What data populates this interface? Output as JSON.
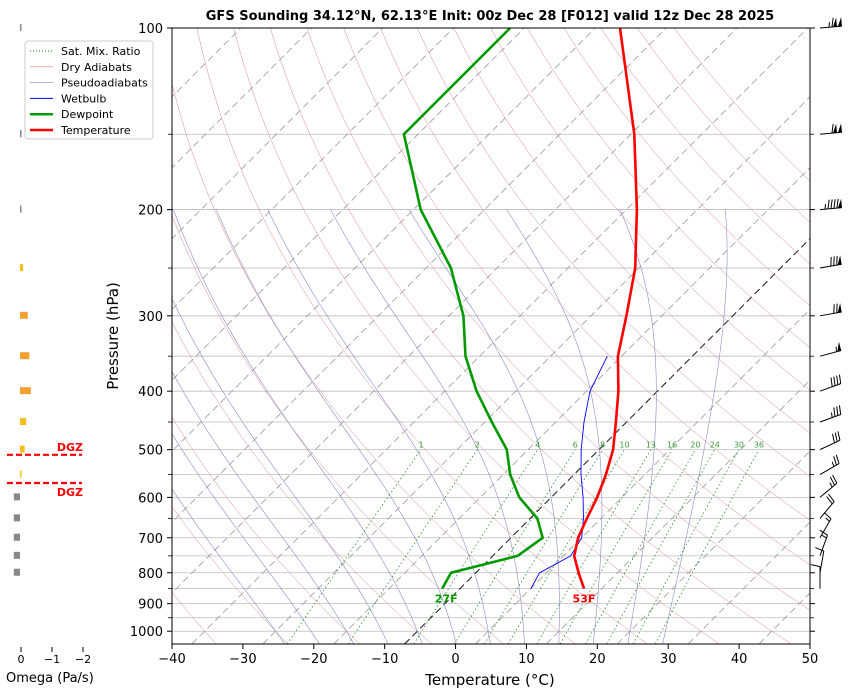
{
  "chart_data": {
    "type": "line",
    "title": "GFS Sounding 34.12°N, 62.13°E Init: 00z Dec 28 [F012] valid 12z Dec 28 2025",
    "xlabel": "Temperature (°C)",
    "ylabel": "Pressure (hPa)",
    "xlim": [
      -40,
      50
    ],
    "ylim": [
      1050,
      100
    ],
    "x_ticks": [
      -40,
      -30,
      -20,
      -10,
      0,
      10,
      20,
      30,
      40,
      50
    ],
    "x_tick_labels": [
      "−40",
      "−30",
      "−20",
      "−10",
      "0",
      "10",
      "20",
      "30",
      "40",
      "50"
    ],
    "y_tick_labels": [
      100,
      200,
      300,
      400,
      500,
      600,
      700,
      800,
      900,
      1000
    ],
    "minor_pressure_levels": [
      150,
      250,
      350,
      450,
      550,
      650,
      750,
      850,
      950
    ],
    "legend": {
      "placement": "top-left",
      "entries": [
        {
          "label": "Sat. Mix. Ratio",
          "color": "#008000",
          "style": "dotted"
        },
        {
          "label": "Dry Adiabats",
          "color": "#d08080",
          "style": "solid"
        },
        {
          "label": "Pseudoadiabats",
          "color": "#8080c0",
          "style": "solid"
        },
        {
          "label": "Wetbulb",
          "color": "#0000ff",
          "style": "solid"
        },
        {
          "label": "Dewpoint",
          "color": "#009900",
          "style": "thick"
        },
        {
          "label": "Temperature",
          "color": "#ff0000",
          "style": "thick"
        }
      ]
    },
    "series": [
      {
        "name": "Temperature",
        "color": "#ff0000",
        "pressure": [
          850,
          800,
          750,
          700,
          650,
          600,
          550,
          500,
          450,
          400,
          350,
          300,
          250,
          200,
          150,
          100
        ],
        "values": [
          17.5,
          14.5,
          11.5,
          9.5,
          8.0,
          6.5,
          4.5,
          2.0,
          -1.5,
          -5.5,
          -10.5,
          -15.0,
          -20.5,
          -28.5,
          -39.5,
          -56.5
        ]
      },
      {
        "name": "Dewpoint",
        "color": "#009900",
        "pressure": [
          850,
          800,
          750,
          700,
          650,
          600,
          550,
          500,
          450,
          400,
          350,
          300,
          250,
          200,
          150,
          100
        ],
        "values": [
          -2.5,
          -3.5,
          3.5,
          4.5,
          1.0,
          -4.5,
          -9.0,
          -13.0,
          -19.0,
          -25.5,
          -32.0,
          -38.0,
          -46.5,
          -59.0,
          -72.0,
          -72.0
        ]
      },
      {
        "name": "Wetbulb",
        "color": "#0000ff",
        "pressure": [
          850,
          800,
          750,
          700,
          650,
          600,
          550,
          500,
          450,
          400,
          350
        ],
        "values": [
          10.0,
          9.0,
          11.0,
          10.0,
          7.5,
          4.5,
          1.0,
          -2.5,
          -6.0,
          -9.5,
          -12.0
        ]
      }
    ],
    "surface_labels": {
      "dewpoint": "27F",
      "temperature": "53F"
    },
    "mixing_ratio_labels": [
      "1",
      "2",
      "4",
      "6",
      "8",
      "10",
      "13",
      "16",
      "20",
      "24",
      "30",
      "36"
    ],
    "mixing_ratio_values": [
      1,
      2,
      4,
      6,
      8,
      10,
      13,
      16,
      20,
      24,
      30,
      36
    ],
    "dry_adiabat_thetas_c": [
      -30,
      -20,
      -10,
      0,
      10,
      20,
      30,
      40,
      50,
      60,
      70,
      80,
      90,
      100,
      110,
      120,
      130,
      140,
      150,
      160
    ],
    "pseudoadiabat_starts_c": [
      -20,
      -15,
      -10,
      -5,
      0,
      5,
      10,
      15,
      20,
      25,
      30,
      35
    ],
    "omega": {
      "xlabel": "Omega (Pa/s)",
      "tick_labels": [
        "0",
        "−1",
        "−2"
      ],
      "tick_values": [
        0,
        -1,
        -2
      ],
      "bars": [
        {
          "pressure": 100,
          "value": -0.02,
          "color": "#888888"
        },
        {
          "pressure": 150,
          "value": -0.05,
          "color": "#888888"
        },
        {
          "pressure": 200,
          "value": -0.02,
          "color": "#888888"
        },
        {
          "pressure": 250,
          "value": -0.1,
          "color": "#f4c020"
        },
        {
          "pressure": 300,
          "value": -0.25,
          "color": "#f4a030"
        },
        {
          "pressure": 350,
          "value": -0.3,
          "color": "#f4a030"
        },
        {
          "pressure": 400,
          "value": -0.35,
          "color": "#f4a030"
        },
        {
          "pressure": 450,
          "value": -0.2,
          "color": "#f4c020"
        },
        {
          "pressure": 500,
          "value": -0.15,
          "color": "#f4c020"
        },
        {
          "pressure": 550,
          "value": -0.05,
          "color": "#f4c020"
        },
        {
          "pressure": 600,
          "value": 0.2,
          "color": "#888888"
        },
        {
          "pressure": 650,
          "value": 0.2,
          "color": "#888888"
        },
        {
          "pressure": 700,
          "value": 0.2,
          "color": "#888888"
        },
        {
          "pressure": 750,
          "value": 0.2,
          "color": "#888888"
        },
        {
          "pressure": 800,
          "value": 0.2,
          "color": "#888888"
        }
      ],
      "dgz": [
        {
          "pressure": 510,
          "label": "DGZ"
        },
        {
          "pressure": 568,
          "label": "DGZ"
        }
      ]
    },
    "wind_barbs": [
      {
        "pressure": 100,
        "speed_kt": 115,
        "from_deg": 265
      },
      {
        "pressure": 150,
        "speed_kt": 110,
        "from_deg": 265
      },
      {
        "pressure": 200,
        "speed_kt": 95,
        "from_deg": 265
      },
      {
        "pressure": 250,
        "speed_kt": 80,
        "from_deg": 260
      },
      {
        "pressure": 300,
        "speed_kt": 70,
        "from_deg": 260
      },
      {
        "pressure": 350,
        "speed_kt": 55,
        "from_deg": 255
      },
      {
        "pressure": 400,
        "speed_kt": 40,
        "from_deg": 250
      },
      {
        "pressure": 450,
        "speed_kt": 35,
        "from_deg": 250
      },
      {
        "pressure": 500,
        "speed_kt": 30,
        "from_deg": 245
      },
      {
        "pressure": 550,
        "speed_kt": 25,
        "from_deg": 240
      },
      {
        "pressure": 600,
        "speed_kt": 25,
        "from_deg": 230
      },
      {
        "pressure": 650,
        "speed_kt": 20,
        "from_deg": 220
      },
      {
        "pressure": 700,
        "speed_kt": 15,
        "from_deg": 210
      },
      {
        "pressure": 750,
        "speed_kt": 15,
        "from_deg": 200
      },
      {
        "pressure": 800,
        "speed_kt": 10,
        "from_deg": 190
      },
      {
        "pressure": 850,
        "speed_kt": 10,
        "from_deg": 180
      }
    ]
  }
}
